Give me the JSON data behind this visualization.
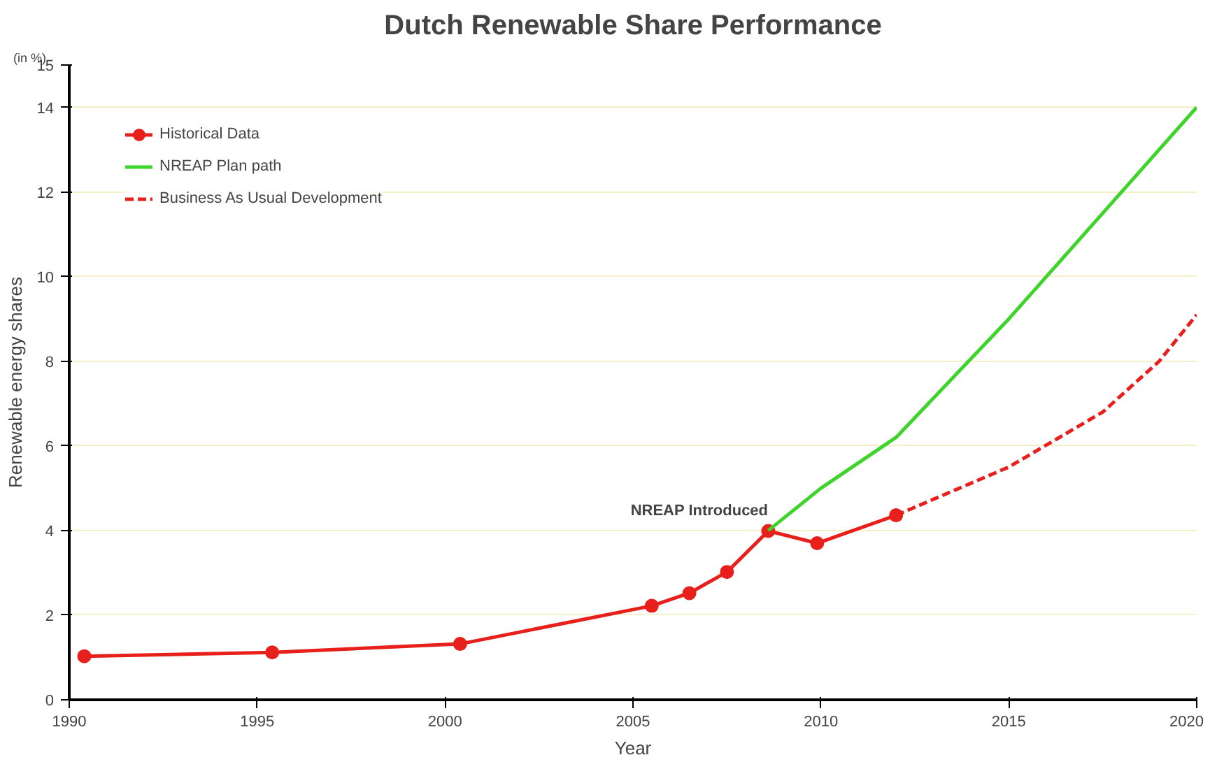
{
  "chart_data": {
    "type": "line",
    "title": "Dutch Renewable Share Performance",
    "xlabel": "Year",
    "ylabel": "Renewable energy shares",
    "annotations": [
      "(in %)",
      {
        "text": "NREAP Introduced",
        "x": 2008.6,
        "y": 4.0
      }
    ],
    "xlim": [
      1990,
      2020
    ],
    "xticks": [
      1990,
      1995,
      2000,
      2005,
      2010,
      2015,
      2020
    ],
    "ylim": [
      0,
      15
    ],
    "yticks": [
      0,
      2,
      4,
      6,
      8,
      10,
      12,
      14,
      15
    ],
    "grid": "y",
    "legend": "top left",
    "series": [
      {
        "name": "Historical Data",
        "color": "#e8201c",
        "marker": "circle",
        "line_style": "solid",
        "x": [
          1990.4,
          1995.4,
          2000.4,
          2005.5,
          2006.5,
          2007.5,
          2008.6,
          2009.9,
          2012.0
        ],
        "values": [
          1.03,
          1.12,
          1.32,
          2.22,
          2.52,
          3.02,
          3.99,
          3.7,
          4.36
        ]
      },
      {
        "name": "NREAP Plan path",
        "color": "#3fd42c",
        "marker": "none",
        "line_style": "solid",
        "x": [
          2008.6,
          2010,
          2012,
          2015,
          2017.5,
          2020
        ],
        "values": [
          4.0,
          5.0,
          6.2,
          9.0,
          11.5,
          14.0
        ]
      },
      {
        "name": "Business As Usual Development",
        "color": "#e8201c",
        "marker": "none",
        "line_style": "dashed",
        "x": [
          2012.0,
          2015,
          2017.5,
          2019,
          2020
        ],
        "values": [
          4.36,
          5.5,
          6.8,
          8.0,
          9.1
        ]
      }
    ]
  }
}
